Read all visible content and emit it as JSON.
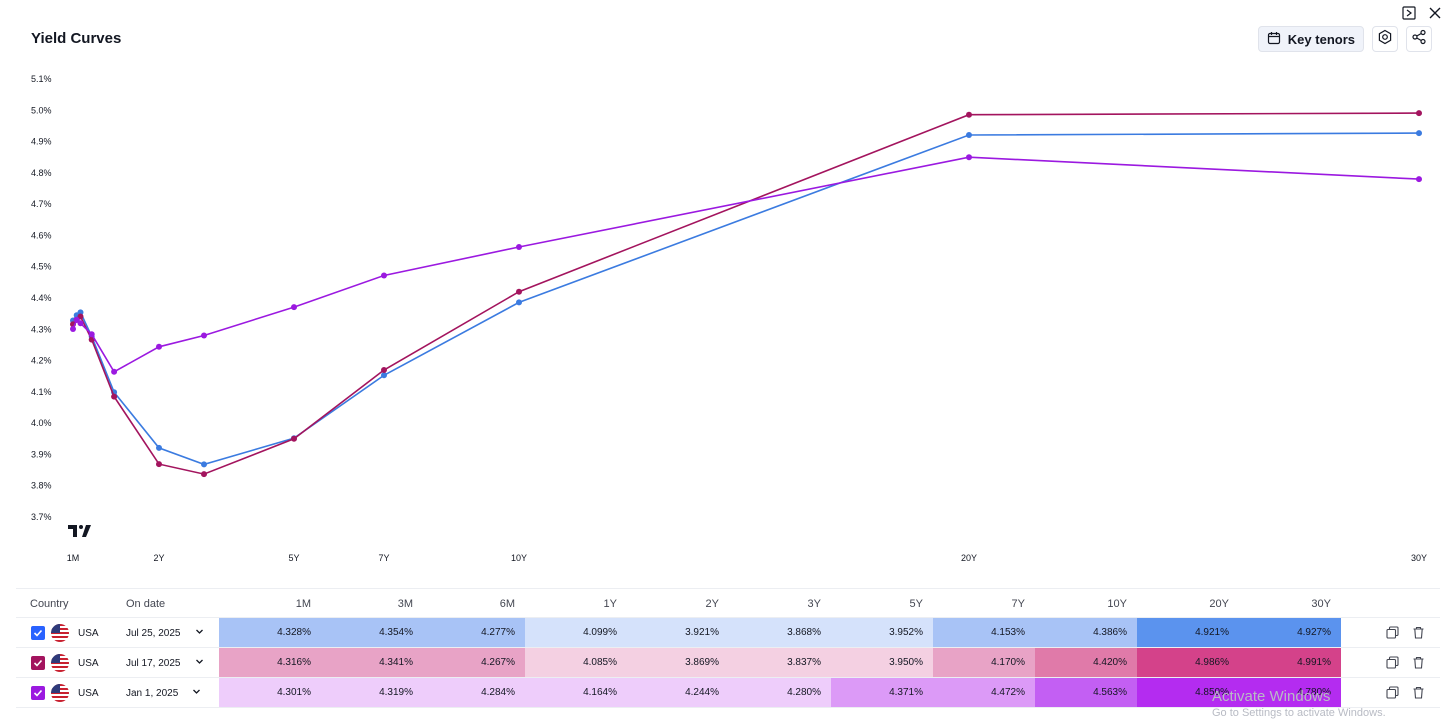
{
  "title": "Yield Curves",
  "toolbar": {
    "key_tenors_label": "Key tenors"
  },
  "chart_data": {
    "type": "line",
    "y_ticks": [
      "5.1%",
      "5.0%",
      "4.9%",
      "4.8%",
      "4.7%",
      "4.6%",
      "4.5%",
      "4.4%",
      "4.3%",
      "4.2%",
      "4.1%",
      "4.0%",
      "3.9%",
      "3.8%",
      "3.7%"
    ],
    "ylim": [
      3.7,
      5.1
    ],
    "x_ticks": [
      {
        "label": "1M",
        "months": 1
      },
      {
        "label": "2Y",
        "months": 24
      },
      {
        "label": "5Y",
        "months": 60
      },
      {
        "label": "7Y",
        "months": 84
      },
      {
        "label": "10Y",
        "months": 120
      },
      {
        "label": "20Y",
        "months": 240
      },
      {
        "label": "30Y",
        "months": 360
      }
    ],
    "x_months": [
      1,
      3,
      6,
      12,
      24,
      36,
      60,
      84,
      120,
      240,
      360
    ],
    "extra_point_x_months": 2,
    "series": [
      {
        "color": "#3b7be0",
        "values": [
          4.328,
          4.354,
          4.277,
          4.099,
          3.921,
          3.868,
          3.952,
          4.153,
          4.386,
          4.921,
          4.927
        ],
        "extra_value": 4.345
      },
      {
        "color": "#a3145e",
        "values": [
          4.316,
          4.341,
          4.267,
          4.085,
          3.869,
          3.837,
          3.95,
          4.17,
          4.42,
          4.986,
          4.991
        ],
        "extra_value": 4.33
      },
      {
        "color": "#9b19e0",
        "values": [
          4.301,
          4.319,
          4.284,
          4.164,
          4.244,
          4.28,
          4.371,
          4.472,
          4.563,
          4.85,
          4.78
        ],
        "extra_value": 4.33
      }
    ]
  },
  "table": {
    "headers": {
      "country": "Country",
      "on_date": "On date"
    },
    "tenor_headers": [
      "1M",
      "3M",
      "6M",
      "1Y",
      "2Y",
      "3Y",
      "5Y",
      "7Y",
      "10Y",
      "20Y",
      "30Y"
    ],
    "rows": [
      {
        "country": "USA",
        "date": "Jul 25, 2025",
        "check_color": "#2962ff",
        "values": [
          "4.328%",
          "4.354%",
          "4.277%",
          "4.099%",
          "3.921%",
          "3.868%",
          "3.952%",
          "4.153%",
          "4.386%",
          "4.921%",
          "4.927%"
        ],
        "cell_colors": [
          "#a8c3f6",
          "#a8c3f6",
          "#a8c3f6",
          "#d5e2fb",
          "#d5e2fb",
          "#d5e2fb",
          "#d5e2fb",
          "#a8c3f6",
          "#a8c3f6",
          "#5b93ee",
          "#5b93ee"
        ]
      },
      {
        "country": "USA",
        "date": "Jul 17, 2025",
        "check_color": "#a3145e",
        "values": [
          "4.316%",
          "4.341%",
          "4.267%",
          "4.085%",
          "3.869%",
          "3.837%",
          "3.950%",
          "4.170%",
          "4.420%",
          "4.986%",
          "4.991%"
        ],
        "cell_colors": [
          "#e8a3c6",
          "#e8a3c6",
          "#e8a3c6",
          "#f4d0e2",
          "#f4d0e2",
          "#f4d0e2",
          "#f4d0e2",
          "#e8a3c6",
          "#e07aa9",
          "#d4428a",
          "#d4428a"
        ]
      },
      {
        "country": "USA",
        "date": "Jan 1, 2025",
        "check_color": "#9b19e0",
        "values": [
          "4.301%",
          "4.319%",
          "4.284%",
          "4.164%",
          "4.244%",
          "4.280%",
          "4.371%",
          "4.472%",
          "4.563%",
          "4.850%",
          "4.780%"
        ],
        "cell_colors": [
          "#eecdfb",
          "#eecdfb",
          "#eecdfb",
          "#eecdfb",
          "#eecdfb",
          "#eecdfb",
          "#dc9af7",
          "#dc9af7",
          "#c35ff3",
          "#b42cf0",
          "#b42cf0"
        ]
      }
    ]
  },
  "watermark": {
    "line1": "Activate Windows",
    "line2": "Go to Settings to activate Windows."
  },
  "icons": [
    "expand-icon",
    "close-icon",
    "calendar-icon",
    "settings-icon",
    "share-icon",
    "tradingview-logo-icon",
    "check-icon",
    "us-flag-icon",
    "chevron-down-icon",
    "copy-icon",
    "trash-icon"
  ]
}
